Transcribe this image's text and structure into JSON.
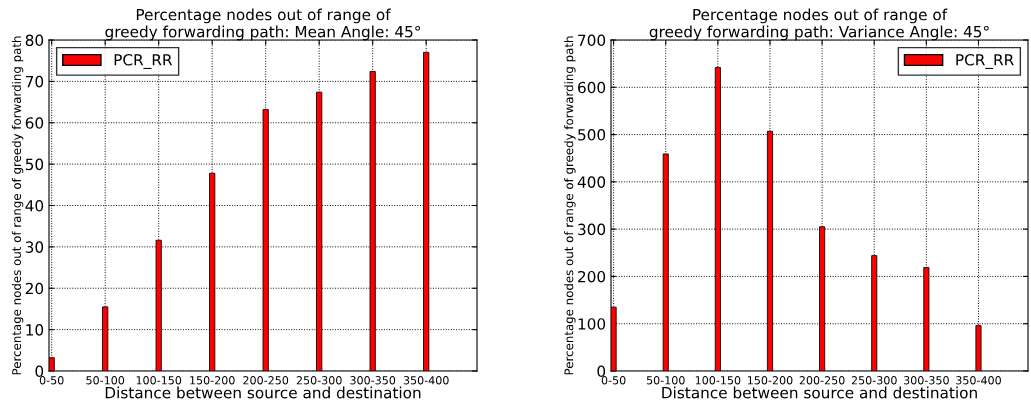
{
  "chart_data": [
    {
      "type": "bar",
      "title": "Percentage nodes out of range of\ngreedy forwarding path: Mean Angle: 45°",
      "xlabel": "Distance between source and destination",
      "ylabel": "Percentage nodes out of range of greedy forwarding path",
      "categories": [
        "0-50",
        "50-100",
        "100-150",
        "150-200",
        "200-250",
        "250-300",
        "300-350",
        "350-400"
      ],
      "series": [
        {
          "name": "PCR_RR",
          "color": "#ff0000",
          "values": [
            3.2,
            15.5,
            31.6,
            47.8,
            63.2,
            67.4,
            72.4,
            77.0
          ]
        }
      ],
      "ylim": [
        0,
        80
      ],
      "yticks": [
        0,
        10,
        20,
        30,
        40,
        50,
        60,
        70,
        80
      ],
      "grid": true,
      "legend": "top left"
    },
    {
      "type": "bar",
      "title": "Percentage nodes out of range of\ngreedy forwarding path: Variance Angle: 45°",
      "xlabel": "Distance between source and destination",
      "ylabel": "Percentage nodes out of range of greedy forwarding path",
      "categories": [
        "0-50",
        "50-100",
        "100-150",
        "150-200",
        "200-250",
        "250-300",
        "300-350",
        "350-400"
      ],
      "series": [
        {
          "name": "PCR_RR",
          "color": "#ff0000",
          "values": [
            135,
            459,
            642,
            507,
            305,
            244,
            219,
            96
          ]
        }
      ],
      "ylim": [
        0,
        700
      ],
      "yticks": [
        0,
        100,
        200,
        300,
        400,
        500,
        600,
        700
      ],
      "grid": true,
      "legend": "top right"
    }
  ]
}
